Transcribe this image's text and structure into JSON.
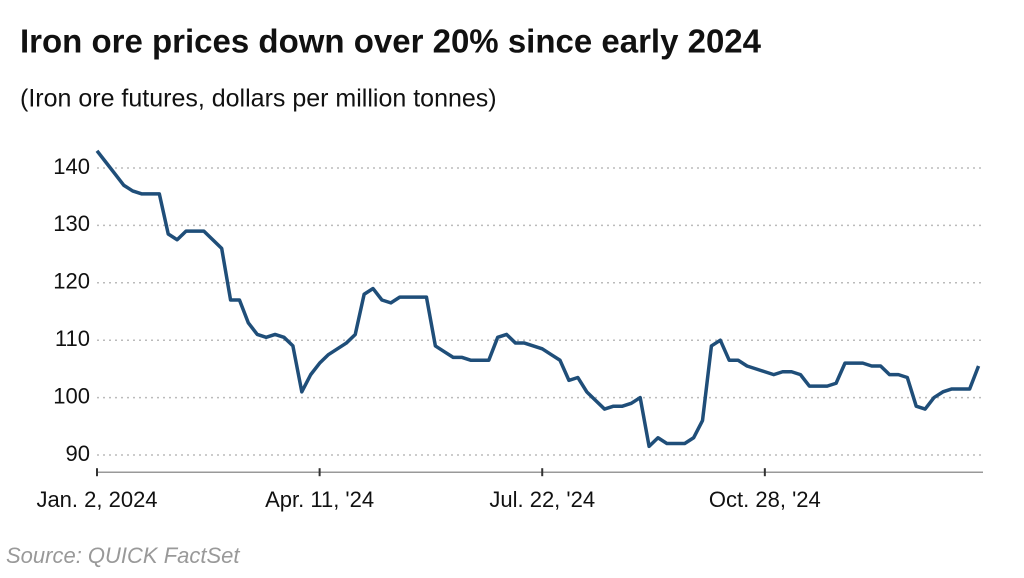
{
  "chart_data": {
    "type": "line",
    "title": "Iron ore prices down over 20% since early 2024",
    "subtitle": "(Iron ore futures, dollars per million tonnes)",
    "source": "Source: QUICK FactSet",
    "categories": [
      "Jan. 2, 2024",
      null,
      null,
      null,
      null,
      null,
      null,
      null,
      null,
      null,
      null,
      null,
      null,
      null,
      null,
      null,
      null,
      null,
      null,
      null,
      null,
      null,
      null,
      null,
      null,
      "Apr. 11, '24",
      null,
      null,
      null,
      null,
      null,
      null,
      null,
      null,
      null,
      null,
      null,
      null,
      null,
      null,
      null,
      null,
      null,
      null,
      null,
      null,
      null,
      null,
      null,
      null,
      "Jul. 22, '24",
      null,
      null,
      null,
      null,
      null,
      null,
      null,
      null,
      null,
      null,
      null,
      null,
      null,
      null,
      null,
      null,
      null,
      null,
      null,
      null,
      null,
      null,
      null,
      null,
      "Oct. 28, '24",
      null,
      null,
      null,
      null,
      null,
      null,
      null,
      null,
      null,
      null,
      null,
      null,
      null,
      null,
      null,
      null,
      null,
      null,
      null,
      null,
      null,
      null,
      null,
      null
    ],
    "series": [
      {
        "name": "Iron ore futures",
        "color": "#1f4e79",
        "values": [
          143,
          141,
          139,
          137,
          136,
          135.5,
          135.5,
          135.5,
          128.5,
          127.5,
          129,
          129,
          129,
          127.5,
          126,
          117,
          117,
          113,
          111,
          110.5,
          111,
          110.5,
          109,
          101,
          104,
          106,
          107.5,
          108.5,
          109.5,
          111,
          118,
          119,
          117,
          116.5,
          117.5,
          117.5,
          117.5,
          117.5,
          109,
          108,
          107,
          107,
          106.5,
          106.5,
          106.5,
          110.5,
          111,
          109.5,
          109.5,
          109,
          108.5,
          107.5,
          106.5,
          103,
          103.5,
          101,
          99.5,
          98,
          98.5,
          98.5,
          99,
          100,
          91.5,
          93,
          92,
          92,
          92,
          93,
          96,
          109,
          110,
          106.5,
          106.5,
          105.5,
          105,
          104.5,
          104,
          104.5,
          104.5,
          104,
          102,
          102,
          102,
          102.5,
          106,
          106,
          106,
          105.5,
          105.5,
          104,
          104,
          103.5,
          98.5,
          98,
          100,
          101,
          101.5,
          101.5,
          101.5,
          105.5
        ]
      }
    ],
    "ylim": [
      87,
      145
    ],
    "yticks": [
      90,
      100,
      110,
      120,
      130,
      140
    ],
    "grid": true
  }
}
